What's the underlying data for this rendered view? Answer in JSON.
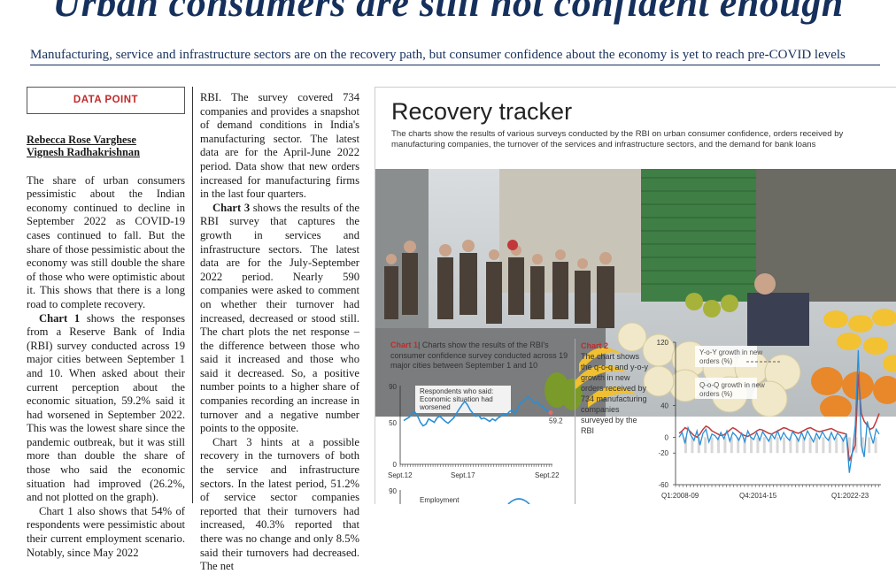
{
  "headline": "Urban consumers are still not confident enough",
  "subhead": "Manufacturing, service and infrastructure sectors are on the recovery path, but consumer confidence about the economy is yet to reach pre-COVID levels",
  "data_point_label": "DATA POINT",
  "authors": [
    "Rebecca Rose Varghese",
    "Vignesh Radhakrishnan"
  ],
  "column_a": {
    "p1": "The share of urban consumers pessimistic about the Indian economy continued to decline in September 2022 as COVID-19 cases continued to fall. But the share of those pessimistic about the economy was still double the share of those who were optimistic about it. This shows that there is a long road to complete recovery.",
    "p2_lead": "Chart 1",
    "p2": " shows the responses from a Reserve Bank of India (RBI) survey conducted across 19 major cities between September 1 and 10. When asked about their current perception about the economic situation, 59.2% said it had worsened in September 2022. This was the lowest share since the pandemic outbreak, but it was still more than double the share of those who said the economic situation had improved (26.2%, and not plotted on the graph).",
    "p3": "Chart 1 also shows that 54% of respondents were pessimistic about their current employment scenario. Notably, since May 2022"
  },
  "column_b": {
    "p1": "RBI. The survey covered 734 companies and provides a snapshot of demand conditions in India's manufacturing sector. The latest data are for the April-June 2022 period. Data show that new orders increased for manufacturing firms in the last four quarters.",
    "p2_lead": "Chart 3",
    "p2": " shows the results of the RBI survey that captures the growth in services and infrastructure sectors. The latest data are for the July-September 2022 period. Nearly 590 companies were asked to comment on whether their turnover had increased, decreased or stood still. The chart plots the net response – the difference between those who said it increased and those who said it decreased. So, a positive number points to a higher share of companies recording an increase in turnover and a negative number points to the opposite.",
    "p3": "Chart 3 hints at a possible recovery in the turnovers of both the service and infrastructure sectors. In the latest period, 51.2% of service sector companies reported that their turnovers had increased, 40.3% reported that there was no change and only 8.5% said their turnovers had decreased. The net"
  },
  "panel": {
    "title": "Recovery tracker",
    "description": "The charts show the results of various surveys conducted by the RBI on urban consumer confidence, orders received by manufacturing companies, the turnover of the services and infrastructure sectors, and the demand for bank loans"
  },
  "chart1_caption": {
    "tag": "Chart 1",
    "text": "| Charts show the results of the RBI's consumer confidence survey conducted across 19 major cities between September 1 and 10"
  },
  "chart2_caption": {
    "tag": "Chart 2",
    "text": "The chart shows the q-o-q and y-o-y growth in new orders received by 734 manufacturing companies surveyed by the RBI"
  },
  "colors": {
    "navy": "#15305c",
    "red_accent": "#c12a2a",
    "blue_line": "#2a8fd6",
    "red_line": "#c23a3a"
  },
  "chart_data": [
    {
      "type": "line",
      "ytick_labels": [
        "90",
        "50",
        "0"
      ],
      "ylim": [
        0,
        90
      ],
      "x_tick_labels": [
        "Sept.12",
        "Sept.17",
        "Sept.22"
      ],
      "x_range": [
        "Sept.12",
        "Sept.22"
      ],
      "annotation": "Respondents who said:\nEconomic situation had\nworsened",
      "end_label": "59.2",
      "series": [
        {
          "values": [
            50,
            52,
            54,
            58,
            60,
            55,
            48,
            44,
            46,
            52,
            50,
            48,
            53,
            55,
            52,
            49,
            47,
            50,
            53,
            58,
            63,
            68,
            72,
            68,
            62,
            58,
            55,
            56,
            52,
            53,
            51,
            49,
            52,
            50,
            53,
            55,
            58,
            56,
            60,
            62,
            58,
            63,
            70,
            72,
            75,
            77,
            74,
            70,
            72,
            68,
            66,
            63,
            61,
            59.2
          ],
          "color": "#2a8fd6"
        }
      ],
      "second_panel_ytick": "90",
      "second_panel_label": "Employment"
    },
    {
      "type": "line",
      "yticks": [
        120,
        40,
        0,
        -20,
        -60
      ],
      "ylim": [
        -60,
        120
      ],
      "x_tick_labels": [
        "Q1:2008-09",
        "Q4:2014-15",
        "Q1:2022-23"
      ],
      "x_range": [
        "Q1:2008-09",
        "Q1:2022-23"
      ],
      "legend": [
        "Y-o-Y growth in new orders (%)",
        "Q-o-Q growth in new orders (%)"
      ],
      "series": [
        {
          "name": "Y-o-Y growth in new orders (%)",
          "color": "#c23a3a",
          "values": [
            5,
            8,
            12,
            10,
            6,
            2,
            0,
            4,
            10,
            14,
            12,
            8,
            6,
            4,
            2,
            3,
            6,
            9,
            12,
            10,
            7,
            4,
            2,
            1,
            3,
            5,
            8,
            10,
            9,
            7,
            5,
            4,
            6,
            8,
            10,
            12,
            11,
            9,
            8,
            6,
            5,
            7,
            9,
            11,
            12,
            10,
            8,
            7,
            8,
            9,
            10,
            11,
            9,
            7,
            6,
            5,
            4,
            -30,
            -20,
            -10,
            80,
            30,
            20,
            15,
            10,
            12,
            20,
            30
          ]
        },
        {
          "name": "Q-o-Q growth in new orders (%)",
          "color": "#2a8fd6",
          "values": [
            0,
            6,
            -8,
            12,
            2,
            -4,
            8,
            -10,
            5,
            10,
            -6,
            4,
            2,
            -3,
            6,
            -2,
            8,
            -5,
            6,
            2,
            -4,
            5,
            -6,
            8,
            0,
            -3,
            6,
            -4,
            7,
            1,
            -5,
            4,
            -2,
            8,
            -3,
            6,
            0,
            -4,
            7,
            2,
            -5,
            6,
            -3,
            8,
            1,
            -6,
            5,
            -2,
            7,
            0,
            -4,
            6,
            -3,
            5,
            2,
            -5,
            4,
            -45,
            -20,
            15,
            110,
            -10,
            -25,
            20,
            5,
            -8,
            10,
            4
          ]
        }
      ]
    }
  ]
}
